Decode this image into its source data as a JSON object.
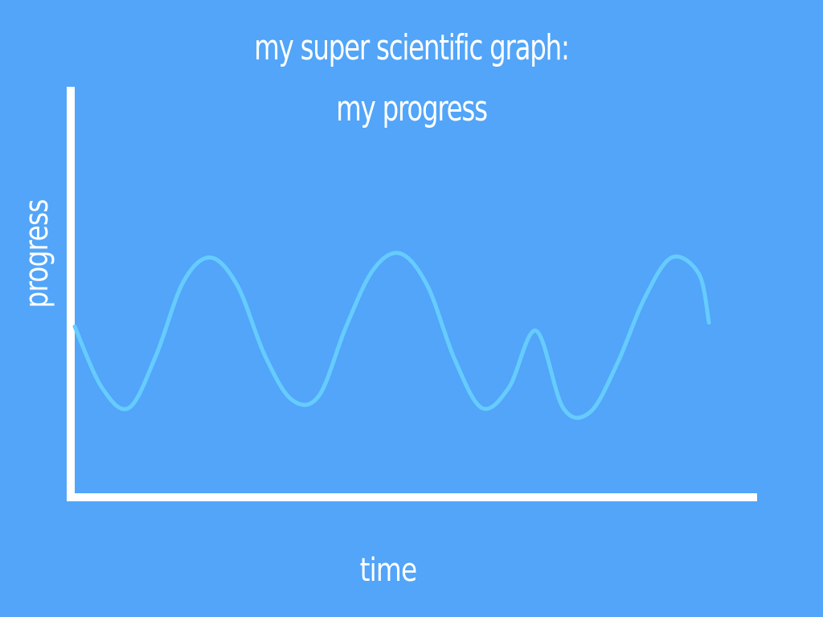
{
  "chart_data": {
    "type": "line",
    "title_lines": [
      "my super scientific graph:",
      "my progress"
    ],
    "xlabel": "time",
    "ylabel": "progress",
    "grid": false,
    "legend": "none",
    "xlim": [
      0,
      10
    ],
    "ylim": [
      0,
      10
    ],
    "series": [
      {
        "color": "#66ccff",
        "x": [
          0.0,
          0.4,
          0.8,
          1.2,
          1.6,
          2.0,
          2.4,
          2.8,
          3.2,
          3.6,
          4.0,
          4.4,
          4.8,
          5.2,
          5.6,
          6.0,
          6.4,
          6.8,
          7.2,
          7.6,
          8.0,
          8.4,
          8.8,
          9.2,
          9.35
        ],
        "y": [
          4.1,
          2.6,
          2.1,
          3.4,
          5.2,
          5.8,
          5.1,
          3.4,
          2.3,
          2.4,
          4.1,
          5.5,
          5.9,
          5.1,
          3.3,
          2.1,
          2.6,
          4.0,
          2.1,
          2.0,
          3.2,
          4.8,
          5.8,
          5.4,
          4.2
        ]
      }
    ]
  },
  "colors": {
    "background": "#52a5f8",
    "axis": "#ffffff",
    "text": "#ffffff",
    "line": "#66ccff"
  }
}
